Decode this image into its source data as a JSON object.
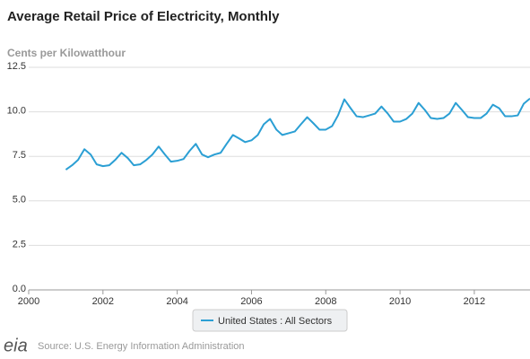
{
  "chart_data": {
    "type": "line",
    "title": "Average Retail Price of Electricity, Monthly",
    "y_label": "Cents per Kilowatthour",
    "source": "Source: U.S. Energy Information Administration",
    "logo": "eia",
    "x": [
      2001.0,
      2001.17,
      2001.33,
      2001.5,
      2001.67,
      2001.83,
      2002.0,
      2002.17,
      2002.33,
      2002.5,
      2002.67,
      2002.83,
      2003.0,
      2003.17,
      2003.33,
      2003.5,
      2003.67,
      2003.83,
      2004.0,
      2004.17,
      2004.33,
      2004.5,
      2004.67,
      2004.83,
      2005.0,
      2005.17,
      2005.33,
      2005.5,
      2005.67,
      2005.83,
      2006.0,
      2006.17,
      2006.33,
      2006.5,
      2006.67,
      2006.83,
      2007.0,
      2007.17,
      2007.33,
      2007.5,
      2007.67,
      2007.83,
      2008.0,
      2008.17,
      2008.33,
      2008.5,
      2008.67,
      2008.83,
      2009.0,
      2009.17,
      2009.33,
      2009.5,
      2009.67,
      2009.83,
      2010.0,
      2010.17,
      2010.33,
      2010.5,
      2010.67,
      2010.83,
      2011.0,
      2011.17,
      2011.33,
      2011.5,
      2011.67,
      2011.83,
      2012.0,
      2012.17,
      2012.33,
      2012.5,
      2012.67,
      2012.83,
      2013.0,
      2013.17,
      2013.33,
      2013.5
    ],
    "series": [
      {
        "name": "United States : All Sectors",
        "color": "#2b9fd4",
        "values": [
          6.75,
          7.0,
          7.3,
          7.9,
          7.6,
          7.05,
          6.95,
          7.0,
          7.3,
          7.7,
          7.4,
          7.0,
          7.05,
          7.3,
          7.6,
          8.05,
          7.6,
          7.2,
          7.25,
          7.35,
          7.8,
          8.2,
          7.6,
          7.45,
          7.6,
          7.7,
          8.2,
          8.7,
          8.5,
          8.3,
          8.4,
          8.7,
          9.3,
          9.6,
          9.0,
          8.7,
          8.8,
          8.9,
          9.3,
          9.7,
          9.35,
          9.0,
          9.0,
          9.2,
          9.8,
          10.7,
          10.2,
          9.75,
          9.7,
          9.8,
          9.9,
          10.3,
          9.9,
          9.45,
          9.45,
          9.6,
          9.9,
          10.5,
          10.1,
          9.65,
          9.6,
          9.65,
          9.9,
          10.5,
          10.1,
          9.7,
          9.65,
          9.65,
          9.9,
          10.4,
          10.2,
          9.75,
          9.75,
          9.8,
          10.45,
          10.75
        ]
      }
    ],
    "xlim": [
      2000,
      2013.5
    ],
    "xticks": [
      2000,
      2002,
      2004,
      2006,
      2008,
      2010,
      2012
    ],
    "ylim": [
      0,
      12.5
    ],
    "yticks": [
      {
        "value": 0,
        "label": "0.0"
      },
      {
        "value": 2.5,
        "label": "2.5"
      },
      {
        "value": 5,
        "label": "5.0"
      },
      {
        "value": 7.5,
        "label": "7.5"
      },
      {
        "value": 10,
        "label": "10.0"
      },
      {
        "value": 12.5,
        "label": "12.5"
      }
    ],
    "grid": true
  }
}
